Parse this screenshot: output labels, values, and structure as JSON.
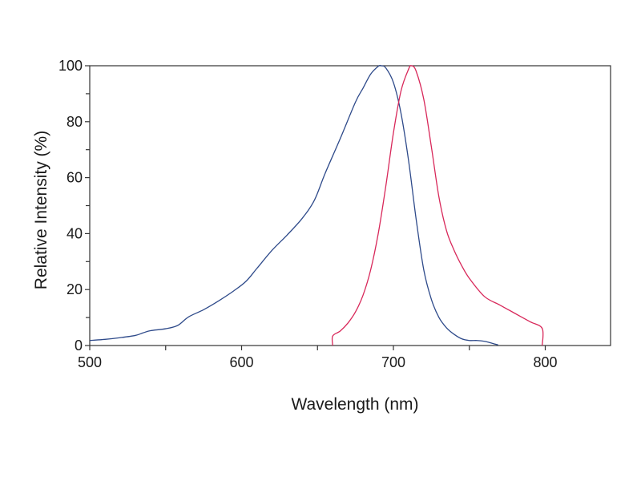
{
  "chart_data": {
    "type": "line",
    "title": "",
    "xlabel": "Wavelength (nm)",
    "ylabel": "Relative Intensity (%)",
    "xlim": [
      500,
      843
    ],
    "ylim": [
      0,
      100
    ],
    "x_ticks": [
      500,
      600,
      700,
      800
    ],
    "x_minor_ticks": [
      550,
      650,
      750
    ],
    "y_ticks": [
      0,
      20,
      40,
      60,
      80,
      100
    ],
    "y_minor_ticks": [
      10,
      30,
      50,
      70,
      90
    ],
    "grid": false,
    "legend": "none",
    "series": [
      {
        "color": "#2e4a8a",
        "points": [
          [
            500,
            1.8
          ],
          [
            510,
            2.2
          ],
          [
            520,
            2.8
          ],
          [
            530,
            3.6
          ],
          [
            535,
            4.5
          ],
          [
            540,
            5.3
          ],
          [
            550,
            6.0
          ],
          [
            558,
            7.2
          ],
          [
            565,
            10.2
          ],
          [
            575,
            12.8
          ],
          [
            585,
            16.0
          ],
          [
            595,
            19.6
          ],
          [
            603,
            23.0
          ],
          [
            610,
            27.5
          ],
          [
            620,
            34.0
          ],
          [
            630,
            39.5
          ],
          [
            640,
            45.5
          ],
          [
            648,
            52.0
          ],
          [
            655,
            61.5
          ],
          [
            665,
            74.0
          ],
          [
            675,
            87.0
          ],
          [
            680,
            92.0
          ],
          [
            685,
            97.0
          ],
          [
            690,
            99.8
          ],
          [
            692,
            100.0
          ],
          [
            695,
            99.2
          ],
          [
            700,
            94.0
          ],
          [
            705,
            83.0
          ],
          [
            710,
            66.0
          ],
          [
            715,
            45.0
          ],
          [
            720,
            27.0
          ],
          [
            725,
            16.5
          ],
          [
            730,
            10.0
          ],
          [
            735,
            6.3
          ],
          [
            740,
            4.0
          ],
          [
            745,
            2.4
          ],
          [
            750,
            1.8
          ],
          [
            755,
            1.8
          ],
          [
            760,
            1.5
          ],
          [
            765,
            0.8
          ],
          [
            769,
            0.2
          ]
        ]
      },
      {
        "color": "#d8285a",
        "points": [
          [
            660,
            0.0
          ],
          [
            660,
            3.4
          ],
          [
            665,
            5.2
          ],
          [
            670,
            8.0
          ],
          [
            675,
            12.0
          ],
          [
            680,
            18.0
          ],
          [
            685,
            27.0
          ],
          [
            690,
            40.0
          ],
          [
            695,
            57.0
          ],
          [
            700,
            76.0
          ],
          [
            705,
            91.0
          ],
          [
            710,
            98.8
          ],
          [
            712,
            100.0
          ],
          [
            715,
            98.0
          ],
          [
            720,
            88.0
          ],
          [
            725,
            71.0
          ],
          [
            730,
            53.0
          ],
          [
            735,
            41.0
          ],
          [
            740,
            34.0
          ],
          [
            745,
            28.5
          ],
          [
            750,
            24.0
          ],
          [
            760,
            17.5
          ],
          [
            770,
            14.5
          ],
          [
            780,
            11.5
          ],
          [
            790,
            8.5
          ],
          [
            798,
            6.1
          ],
          [
            798,
            0.0
          ]
        ]
      }
    ]
  }
}
